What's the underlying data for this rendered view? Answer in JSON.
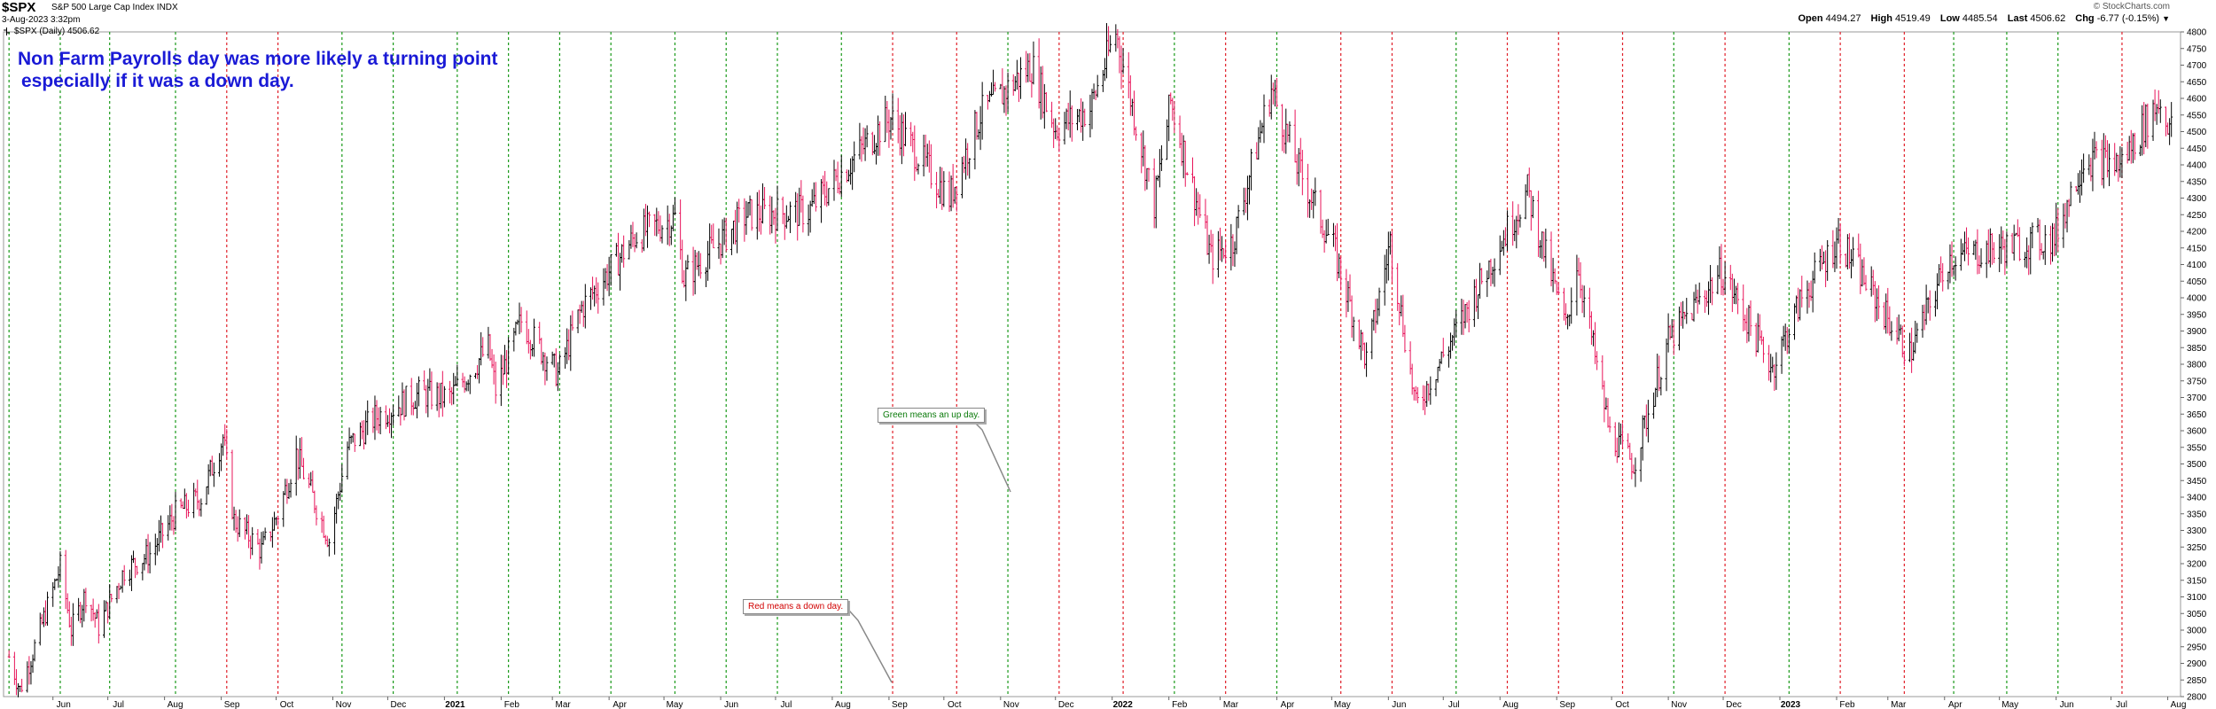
{
  "header": {
    "symbol": "$SPX",
    "description": "S&P 500 Large Cap Index INDX",
    "timestamp": "3-Aug-2023 3:32pm",
    "legend": "$SPX (Daily) 4506.62",
    "credit": "© StockCharts.com",
    "open_label": "Open",
    "open": "4494.27",
    "high_label": "High",
    "high": "4519.49",
    "low_label": "Low",
    "low": "4485.54",
    "last_label": "Last",
    "last": "4506.62",
    "chg_label": "Chg",
    "chg": "-6.77 (-0.15%)"
  },
  "annotations": {
    "headline": "Non Farm Payrolls day was more likely a turning point",
    "headline2": "especially if it was a down day.",
    "green_note": "Green means an up day.",
    "red_note": "Red means a down day."
  },
  "colors": {
    "up_line": "#1a9a1a",
    "down_line": "#e0202a",
    "up_bar": "#000000",
    "down_bar": "#e8145a",
    "headline": "#1a1ad6"
  },
  "chart_data": {
    "type": "ohlc",
    "ylim": [
      2800,
      4800
    ],
    "yticks": [
      4800,
      4750,
      4700,
      4650,
      4600,
      4550,
      4500,
      4450,
      4400,
      4350,
      4300,
      4250,
      4200,
      4150,
      4100,
      4050,
      4000,
      3950,
      3900,
      3850,
      3800,
      3750,
      3700,
      3650,
      3600,
      3550,
      3500,
      3450,
      3400,
      3350,
      3300,
      3250,
      3200,
      3150,
      3100,
      3050,
      3000,
      2950,
      2900,
      2850,
      2800
    ],
    "xticks": [
      "Jun",
      "Jul",
      "Aug",
      "Sep",
      "Oct",
      "Nov",
      "Dec",
      "2021",
      "Feb",
      "Mar",
      "Apr",
      "May",
      "Jun",
      "Jul",
      "Aug",
      "Sep",
      "Oct",
      "Nov",
      "Dec",
      "2022",
      "Feb",
      "Mar",
      "Apr",
      "May",
      "Jun",
      "Jul",
      "Aug",
      "Sep",
      "Oct",
      "Nov",
      "Dec",
      "2023",
      "Feb",
      "Mar",
      "Apr",
      "May",
      "Jun",
      "Jul",
      "Aug"
    ],
    "nfp_days": [
      {
        "date": "2020-05-08",
        "dir": "up"
      },
      {
        "date": "2020-06-05",
        "dir": "up"
      },
      {
        "date": "2020-07-02",
        "dir": "up"
      },
      {
        "date": "2020-08-07",
        "dir": "up"
      },
      {
        "date": "2020-09-04",
        "dir": "down"
      },
      {
        "date": "2020-10-02",
        "dir": "down"
      },
      {
        "date": "2020-11-06",
        "dir": "up"
      },
      {
        "date": "2020-12-04",
        "dir": "up"
      },
      {
        "date": "2021-01-08",
        "dir": "up"
      },
      {
        "date": "2021-02-05",
        "dir": "up"
      },
      {
        "date": "2021-03-05",
        "dir": "up"
      },
      {
        "date": "2021-04-02",
        "dir": "up"
      },
      {
        "date": "2021-05-07",
        "dir": "up"
      },
      {
        "date": "2021-06-04",
        "dir": "up"
      },
      {
        "date": "2021-07-02",
        "dir": "up"
      },
      {
        "date": "2021-08-06",
        "dir": "up"
      },
      {
        "date": "2021-09-03",
        "dir": "down"
      },
      {
        "date": "2021-10-08",
        "dir": "down"
      },
      {
        "date": "2021-11-05",
        "dir": "up"
      },
      {
        "date": "2021-12-03",
        "dir": "down"
      },
      {
        "date": "2022-01-07",
        "dir": "down"
      },
      {
        "date": "2022-02-04",
        "dir": "up"
      },
      {
        "date": "2022-03-04",
        "dir": "down"
      },
      {
        "date": "2022-04-01",
        "dir": "up"
      },
      {
        "date": "2022-05-06",
        "dir": "down"
      },
      {
        "date": "2022-06-03",
        "dir": "down"
      },
      {
        "date": "2022-07-08",
        "dir": "up"
      },
      {
        "date": "2022-08-05",
        "dir": "down"
      },
      {
        "date": "2022-09-02",
        "dir": "down"
      },
      {
        "date": "2022-10-07",
        "dir": "down"
      },
      {
        "date": "2022-11-04",
        "dir": "up"
      },
      {
        "date": "2022-12-02",
        "dir": "down"
      },
      {
        "date": "2023-01-06",
        "dir": "up"
      },
      {
        "date": "2023-02-03",
        "dir": "down"
      },
      {
        "date": "2023-03-10",
        "dir": "down"
      },
      {
        "date": "2023-04-06",
        "dir": "up"
      },
      {
        "date": "2023-05-05",
        "dir": "up"
      },
      {
        "date": "2023-06-02",
        "dir": "up"
      },
      {
        "date": "2023-07-07",
        "dir": "down"
      }
    ],
    "price_path": [
      {
        "date": "2020-05-08",
        "close": 2920
      },
      {
        "date": "2020-05-14",
        "close": 2820
      },
      {
        "date": "2020-05-22",
        "close": 2950
      },
      {
        "date": "2020-06-05",
        "close": 3190
      },
      {
        "date": "2020-06-11",
        "close": 3000
      },
      {
        "date": "2020-06-19",
        "close": 3110
      },
      {
        "date": "2020-06-26",
        "close": 3010
      },
      {
        "date": "2020-07-10",
        "close": 3180
      },
      {
        "date": "2020-07-24",
        "close": 3230
      },
      {
        "date": "2020-08-07",
        "close": 3350
      },
      {
        "date": "2020-08-21",
        "close": 3400
      },
      {
        "date": "2020-09-02",
        "close": 3580
      },
      {
        "date": "2020-09-08",
        "close": 3330
      },
      {
        "date": "2020-09-23",
        "close": 3240
      },
      {
        "date": "2020-10-02",
        "close": 3350
      },
      {
        "date": "2020-10-12",
        "close": 3530
      },
      {
        "date": "2020-10-30",
        "close": 3270
      },
      {
        "date": "2020-11-09",
        "close": 3550
      },
      {
        "date": "2020-11-24",
        "close": 3640
      },
      {
        "date": "2020-12-18",
        "close": 3710
      },
      {
        "date": "2021-01-04",
        "close": 3700
      },
      {
        "date": "2021-01-25",
        "close": 3850
      },
      {
        "date": "2021-01-29",
        "close": 3720
      },
      {
        "date": "2021-02-12",
        "close": 3930
      },
      {
        "date": "2021-03-04",
        "close": 3770
      },
      {
        "date": "2021-03-17",
        "close": 3970
      },
      {
        "date": "2021-04-16",
        "close": 4190
      },
      {
        "date": "2021-05-07",
        "close": 4240
      },
      {
        "date": "2021-05-12",
        "close": 4060
      },
      {
        "date": "2021-06-15",
        "close": 4250
      },
      {
        "date": "2021-07-19",
        "close": 4260
      },
      {
        "date": "2021-08-27",
        "close": 4510
      },
      {
        "date": "2021-09-02",
        "close": 4540
      },
      {
        "date": "2021-10-04",
        "close": 4300
      },
      {
        "date": "2021-10-21",
        "close": 4550
      },
      {
        "date": "2021-11-18",
        "close": 4700
      },
      {
        "date": "2021-12-01",
        "close": 4510
      },
      {
        "date": "2021-12-20",
        "close": 4570
      },
      {
        "date": "2022-01-03",
        "close": 4800
      },
      {
        "date": "2022-01-24",
        "close": 4280
      },
      {
        "date": "2022-02-02",
        "close": 4590
      },
      {
        "date": "2022-02-24",
        "close": 4120
      },
      {
        "date": "2022-03-08",
        "close": 4170
      },
      {
        "date": "2022-03-29",
        "close": 4630
      },
      {
        "date": "2022-04-12",
        "close": 4400
      },
      {
        "date": "2022-05-02",
        "close": 4150
      },
      {
        "date": "2022-05-20",
        "close": 3810
      },
      {
        "date": "2022-06-02",
        "close": 4170
      },
      {
        "date": "2022-06-16",
        "close": 3670
      },
      {
        "date": "2022-07-08",
        "close": 3900
      },
      {
        "date": "2022-07-29",
        "close": 4130
      },
      {
        "date": "2022-08-16",
        "close": 4320
      },
      {
        "date": "2022-09-06",
        "close": 3910
      },
      {
        "date": "2022-09-12",
        "close": 4110
      },
      {
        "date": "2022-09-30",
        "close": 3590
      },
      {
        "date": "2022-10-13",
        "close": 3500
      },
      {
        "date": "2022-11-01",
        "close": 3870
      },
      {
        "date": "2022-11-30",
        "close": 4080
      },
      {
        "date": "2022-12-28",
        "close": 3790
      },
      {
        "date": "2023-01-13",
        "close": 4000
      },
      {
        "date": "2023-02-02",
        "close": 4180
      },
      {
        "date": "2023-03-13",
        "close": 3830
      },
      {
        "date": "2023-04-03",
        "close": 4120
      },
      {
        "date": "2023-05-31",
        "close": 4180
      },
      {
        "date": "2023-06-16",
        "close": 4420
      },
      {
        "date": "2023-07-06",
        "close": 4400
      },
      {
        "date": "2023-07-27",
        "close": 4590
      },
      {
        "date": "2023-08-03",
        "close": 4506.62
      }
    ]
  }
}
